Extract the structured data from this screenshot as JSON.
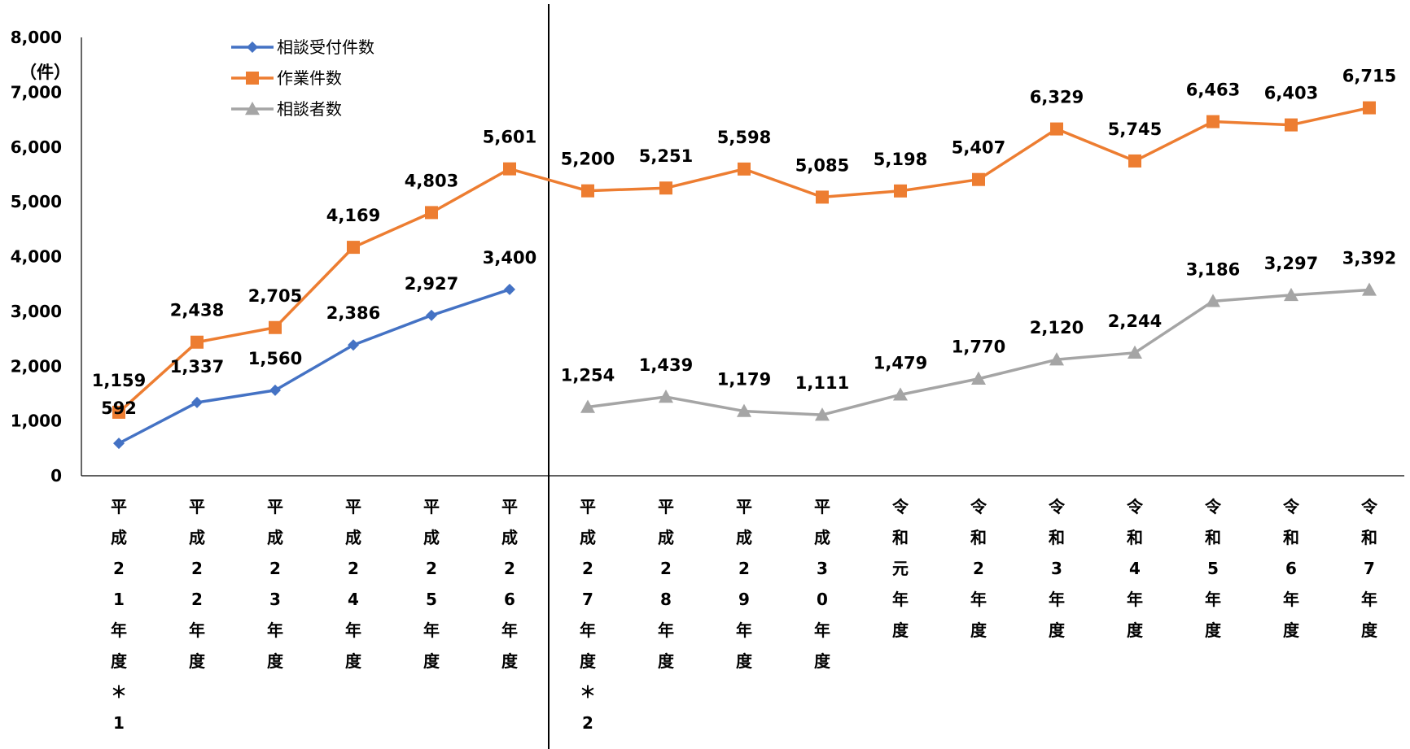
{
  "chart_data": {
    "type": "line",
    "ylabel": "（件）",
    "ylim": [
      0,
      8000
    ],
    "yticks": [
      0,
      1000,
      2000,
      3000,
      4000,
      5000,
      6000,
      7000,
      8000
    ],
    "ytick_labels": [
      "0",
      "1,000",
      "2,000",
      "3,000",
      "4,000",
      "5,000",
      "6,000",
      "7,000",
      "8,000"
    ],
    "grid": false,
    "legend_position": "top-left",
    "categories": [
      "平成21年度＊1",
      "平成22年度",
      "平成23年度",
      "平成24年度",
      "平成25年度",
      "平成26年度",
      "平成27年度＊2",
      "平成28年度",
      "平成29年度",
      "平成30年度",
      "令和元年度",
      "令和2年度",
      "令和3年度",
      "令和4年度",
      "令和5年度",
      "令和6年度",
      "令和7年度"
    ],
    "series": [
      {
        "name": "相談受付件数",
        "color": "#4472C4",
        "marker": "diamond",
        "values": [
          592,
          1337,
          1560,
          2386,
          2927,
          3400,
          null,
          null,
          null,
          null,
          null,
          null,
          null,
          null,
          null,
          null,
          null
        ],
        "labels": [
          "592",
          "1,337",
          "1,560",
          "2,386",
          "2,927",
          "3,400",
          "",
          "",
          "",
          "",
          "",
          "",
          "",
          "",
          "",
          "",
          ""
        ]
      },
      {
        "name": "作業件数",
        "color": "#ED7D31",
        "marker": "square",
        "values": [
          1159,
          2438,
          2705,
          4169,
          4803,
          5601,
          5200,
          5251,
          5598,
          5085,
          5198,
          5407,
          6329,
          5745,
          6463,
          6403,
          6715
        ],
        "labels": [
          "1,159",
          "2,438",
          "2,705",
          "4,169",
          "4,803",
          "5,601",
          "5,200",
          "5,251",
          "5,598",
          "5,085",
          "5,198",
          "5,407",
          "6,329",
          "5,745",
          "6,463",
          "6,403",
          "6,715"
        ]
      },
      {
        "name": "相談者数",
        "color": "#A5A5A5",
        "marker": "triangle",
        "values": [
          null,
          null,
          null,
          null,
          null,
          null,
          1254,
          1439,
          1179,
          1111,
          1479,
          1770,
          2120,
          2244,
          3186,
          3297,
          3392
        ],
        "labels": [
          "",
          "",
          "",
          "",
          "",
          "",
          "1,254",
          "1,439",
          "1,179",
          "1,111",
          "1,479",
          "1,770",
          "2,120",
          "2,244",
          "3,186",
          "3,297",
          "3,392"
        ]
      }
    ],
    "divider_after_category": 5
  }
}
